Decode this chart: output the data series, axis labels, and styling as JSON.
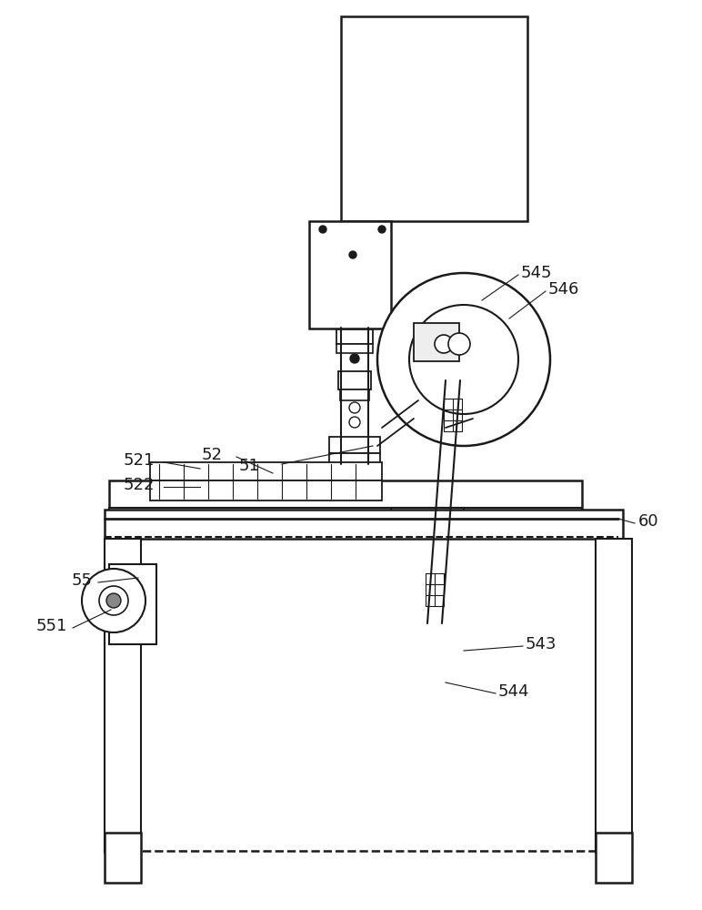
{
  "bg_color": "#ffffff",
  "line_color": "#1a1a1a",
  "label_color": "#1a1a1a",
  "fig_width": 7.72,
  "fig_height": 10.0,
  "dpi": 100
}
